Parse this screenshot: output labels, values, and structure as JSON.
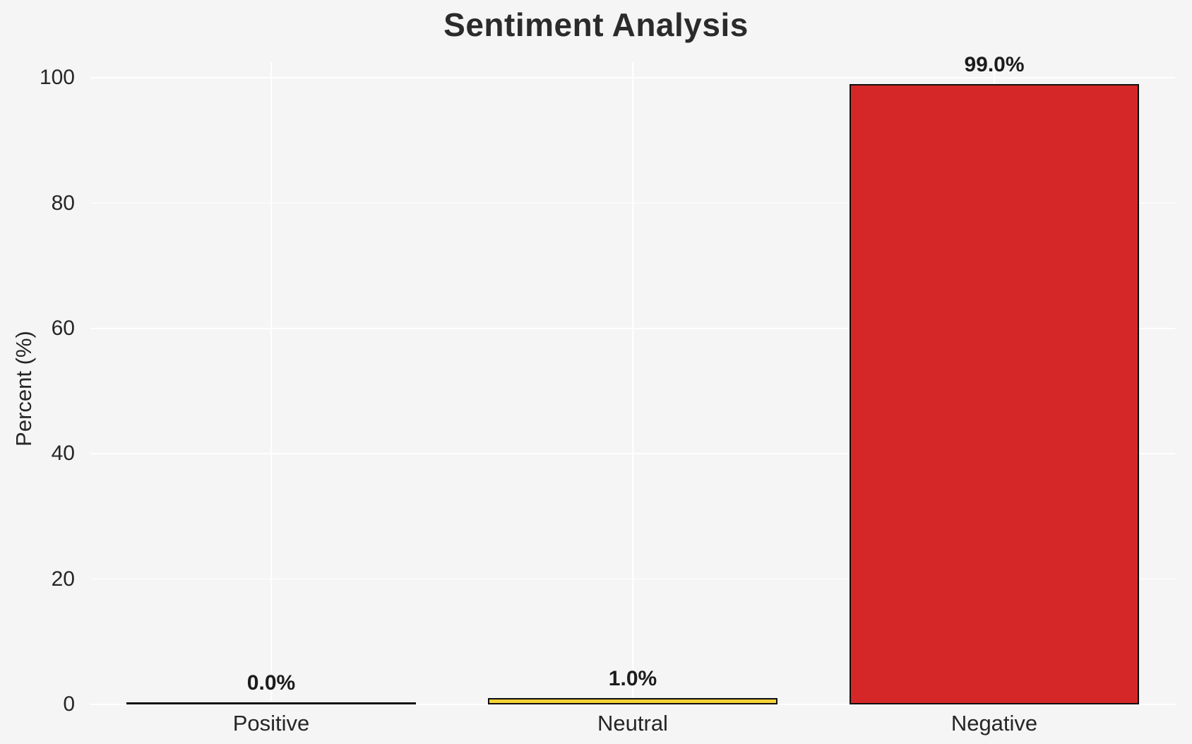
{
  "chart_data": {
    "type": "bar",
    "title": "Sentiment Analysis",
    "xlabel": "",
    "ylabel": "Percent (%)",
    "categories": [
      "Positive",
      "Neutral",
      "Negative"
    ],
    "values": [
      0.0,
      1.0,
      99.0
    ],
    "value_labels": [
      "0.0%",
      "1.0%",
      "99.0%"
    ],
    "bar_colors": [
      null,
      "#f6d235",
      "#d62728"
    ],
    "bar_edge_color": "#0f0f0f",
    "yticks": [
      0,
      20,
      40,
      60,
      80,
      100
    ],
    "ytick_labels": [
      "0",
      "20",
      "40",
      "60",
      "80",
      "100"
    ],
    "ylim": [
      0,
      102.5
    ],
    "grid": true,
    "grid_color": "#ffffff",
    "background_color": "#f5f5f5",
    "legend": "none"
  }
}
